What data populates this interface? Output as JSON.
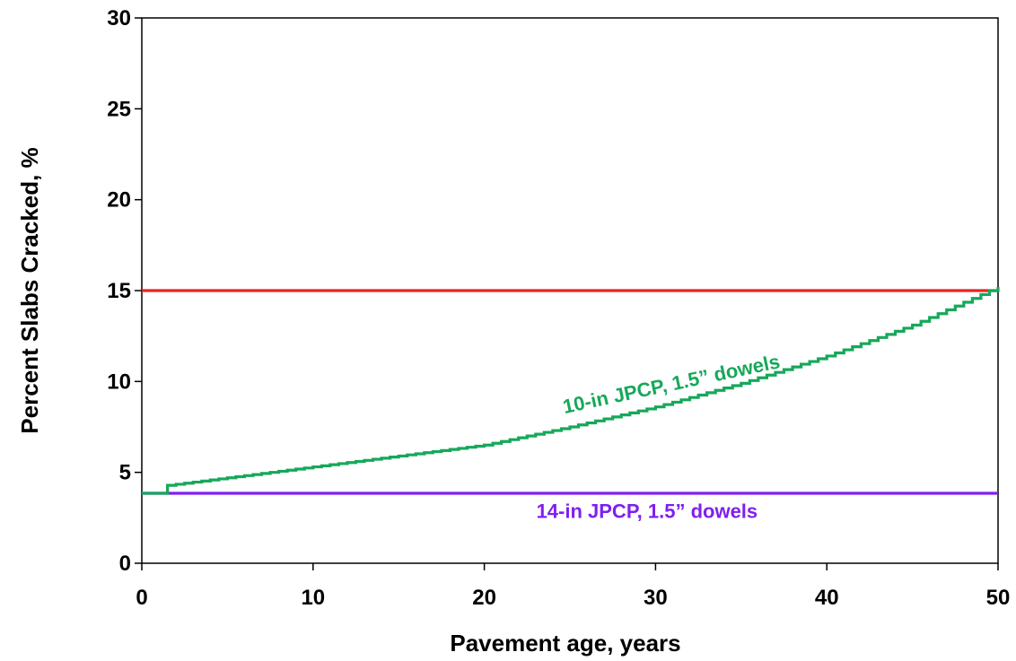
{
  "chart_data": {
    "type": "line",
    "title": "",
    "xlabel": "Pavement age, years",
    "ylabel": "Percent Slabs Cracked, %",
    "xlim": [
      0,
      50
    ],
    "ylim": [
      0,
      30
    ],
    "xticks": [
      0,
      10,
      20,
      30,
      40,
      50
    ],
    "yticks": [
      0,
      5,
      10,
      15,
      20,
      25,
      30
    ],
    "xtick_labels": [
      "0",
      "10",
      "20",
      "30",
      "40",
      "50"
    ],
    "ytick_labels": [
      "0",
      "5",
      "10",
      "15",
      "20",
      "25",
      "30"
    ],
    "grid": false,
    "legend": "none",
    "series": [
      {
        "name": "",
        "color": "#e8231f",
        "step": false,
        "x": [
          0,
          50
        ],
        "y": [
          15,
          15
        ]
      },
      {
        "name": "",
        "color": "#7f1ff0",
        "step": false,
        "x": [
          0,
          50
        ],
        "y": [
          3.85,
          3.85
        ]
      },
      {
        "name": "",
        "color": "#16a85a",
        "step": true,
        "x": [
          0,
          1,
          1.2,
          5,
          10,
          15,
          20,
          25,
          30,
          35,
          40,
          45,
          50
        ],
        "y": [
          3.85,
          3.85,
          4.25,
          4.7,
          5.3,
          5.9,
          6.5,
          7.5,
          8.6,
          9.9,
          11.4,
          13.1,
          15.2
        ]
      }
    ],
    "annotations": [
      {
        "text": "10-in JPCP, 1.5” dowels",
        "color": "#16a85a",
        "x": 31,
        "y": 9.5,
        "rotate": -12
      },
      {
        "text": "14-in JPCP, 1.5” dowels",
        "color": "#7f1ff0",
        "x": 29.5,
        "y": 2.5,
        "rotate": 0
      }
    ]
  }
}
